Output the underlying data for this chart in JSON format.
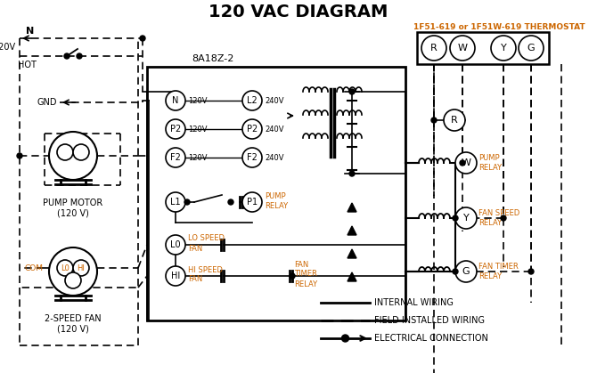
{
  "title": "120 VAC DIAGRAM",
  "title_color": "#000000",
  "title_fontsize": 14,
  "background_color": "#ffffff",
  "thermostat_label": "1F51-619 or 1F51W-619 THERMOSTAT",
  "thermostat_color": "#cc6600",
  "control_box_label": "8A18Z-2",
  "legend_items": [
    {
      "label": "INTERNAL WIRING",
      "style": "solid"
    },
    {
      "label": "FIELD INSTALLED WIRING",
      "style": "dashed"
    },
    {
      "label": "ELECTRICAL CONNECTION",
      "style": "dot"
    }
  ],
  "thermostat_terminals": [
    "R",
    "W",
    "Y",
    "G"
  ],
  "control_terminals_left": [
    {
      "label": "N",
      "volt": "120V"
    },
    {
      "label": "P2",
      "volt": "120V"
    },
    {
      "label": "F2",
      "volt": "120V"
    }
  ],
  "control_terminals_right": [
    {
      "label": "L2",
      "volt": "240V"
    },
    {
      "label": "P2",
      "volt": "240V"
    },
    {
      "label": "F2",
      "volt": "240V"
    }
  ],
  "pump_motor_label": "PUMP MOTOR\n(120 V)",
  "fan_label": "2-SPEED FAN\n(120 V)",
  "relay_right_labels": [
    "PUMP\nRELAY",
    "FAN SPEED\nRELAY",
    "FAN TIMER\nRELAY"
  ],
  "label_color": "#cc6600",
  "box_color": "#000000"
}
